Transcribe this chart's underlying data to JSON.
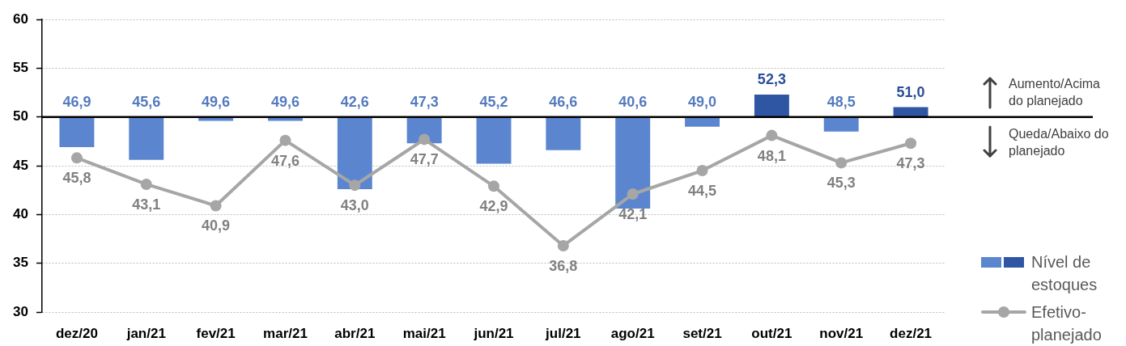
{
  "chart_data": {
    "type": "bar",
    "categories": [
      "dez/20",
      "jan/21",
      "fev/21",
      "mar/21",
      "abr/21",
      "mai/21",
      "jun/21",
      "jul/21",
      "ago/21",
      "set/21",
      "out/21",
      "nov/21",
      "dez/21"
    ],
    "ylim": [
      30,
      60
    ],
    "yticks": [
      30,
      35,
      40,
      45,
      50,
      55,
      60
    ],
    "grid": "y",
    "legend": "bottom right",
    "series": [
      {
        "name": "Nível de estoques",
        "colors": [
          "#5b86cf",
          "#5b86cf",
          "#5b86cf",
          "#5b86cf",
          "#5b86cf",
          "#5b86cf",
          "#5b86cf",
          "#5b86cf",
          "#5b86cf",
          "#5b86cf",
          "#2e56a3",
          "#5b86cf",
          "#2e56a3"
        ],
        "base": [
          50,
          50,
          50,
          50,
          50,
          50,
          50,
          50,
          50,
          50,
          50,
          50,
          50
        ],
        "values": [
          -3.1,
          -4.4,
          -0.4,
          -0.4,
          -7.4,
          -2.7,
          -4.8,
          -3.4,
          -9.4,
          -1.0,
          2.3,
          -1.5,
          1.0
        ],
        "value_labels": [
          "46,9",
          "45,6",
          "49,6",
          "49,6",
          "42,6",
          "47,3",
          "45,2",
          "46,6",
          "40,6",
          "49,0",
          "52,3",
          "48,5",
          "51,0"
        ]
      },
      {
        "name": "Efetivo-planejado",
        "type": "line",
        "color": "#a6a6a6",
        "marker": "circle",
        "line_style": "solid",
        "values": [
          45.8,
          43.1,
          40.9,
          47.6,
          43.0,
          47.7,
          42.9,
          36.8,
          42.1,
          44.5,
          48.1,
          45.3,
          47.3
        ],
        "value_labels": [
          "45,8",
          "43,1",
          "40,9",
          "47,6",
          "43,0",
          "47,7",
          "42,9",
          "36,8",
          "42,1",
          "44,5",
          "48,1",
          "45,3",
          "47,3"
        ]
      }
    ],
    "ref_lines": [
      {
        "axis": "y",
        "value": 50,
        "color": "#000000"
      }
    ],
    "annotations": [
      "Aumento/Acima do planejado",
      "Queda/Abaixo do planejado"
    ]
  }
}
